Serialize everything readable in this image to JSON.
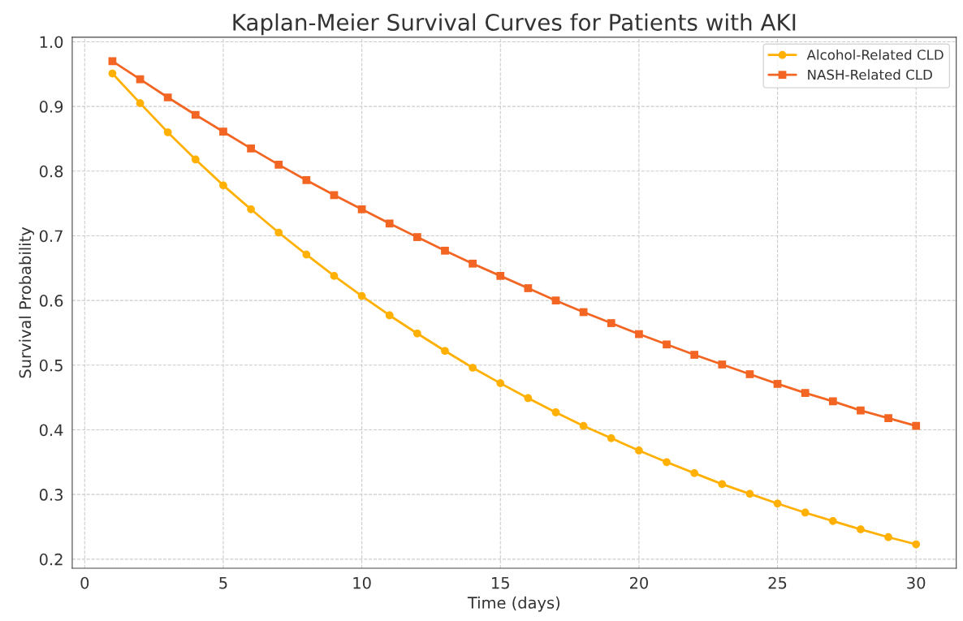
{
  "chart_data": {
    "type": "line",
    "title": "Kaplan-Meier Survival Curves for Patients with AKI",
    "xlabel": "Time (days)",
    "ylabel": "Survival Probability",
    "x": [
      1,
      2,
      3,
      4,
      5,
      6,
      7,
      8,
      9,
      10,
      11,
      12,
      13,
      14,
      15,
      16,
      17,
      18,
      19,
      20,
      21,
      22,
      23,
      24,
      25,
      26,
      27,
      28,
      29,
      30
    ],
    "series": [
      {
        "name": "Alcohol-Related CLD",
        "color": "#ffb000",
        "marker": "circle",
        "values": [
          0.951,
          0.905,
          0.86,
          0.818,
          0.778,
          0.741,
          0.705,
          0.671,
          0.638,
          0.607,
          0.577,
          0.549,
          0.522,
          0.496,
          0.472,
          0.449,
          0.427,
          0.406,
          0.387,
          0.368,
          0.35,
          0.333,
          0.316,
          0.301,
          0.286,
          0.272,
          0.259,
          0.246,
          0.234,
          0.223
        ]
      },
      {
        "name": "NASH-Related CLD",
        "color": "#f26522",
        "marker": "square",
        "values": [
          0.97,
          0.942,
          0.914,
          0.887,
          0.861,
          0.835,
          0.81,
          0.786,
          0.763,
          0.741,
          0.719,
          0.698,
          0.677,
          0.657,
          0.638,
          0.619,
          0.6,
          0.582,
          0.565,
          0.548,
          0.532,
          0.516,
          0.501,
          0.486,
          0.471,
          0.457,
          0.444,
          0.43,
          0.418,
          0.406
        ]
      }
    ],
    "xlim": [
      -0.45,
      31.45
    ],
    "xticks": [
      0,
      5,
      10,
      15,
      20,
      25,
      30
    ],
    "ylim": [
      0.186,
      1.007
    ],
    "yticks": [
      0.2,
      0.3,
      0.4,
      0.5,
      0.6,
      0.7,
      0.8,
      0.9,
      {
        "value": 1,
        "label": "1.0"
      }
    ],
    "grid": true,
    "legend": "top right",
    "line_style": "solid"
  }
}
